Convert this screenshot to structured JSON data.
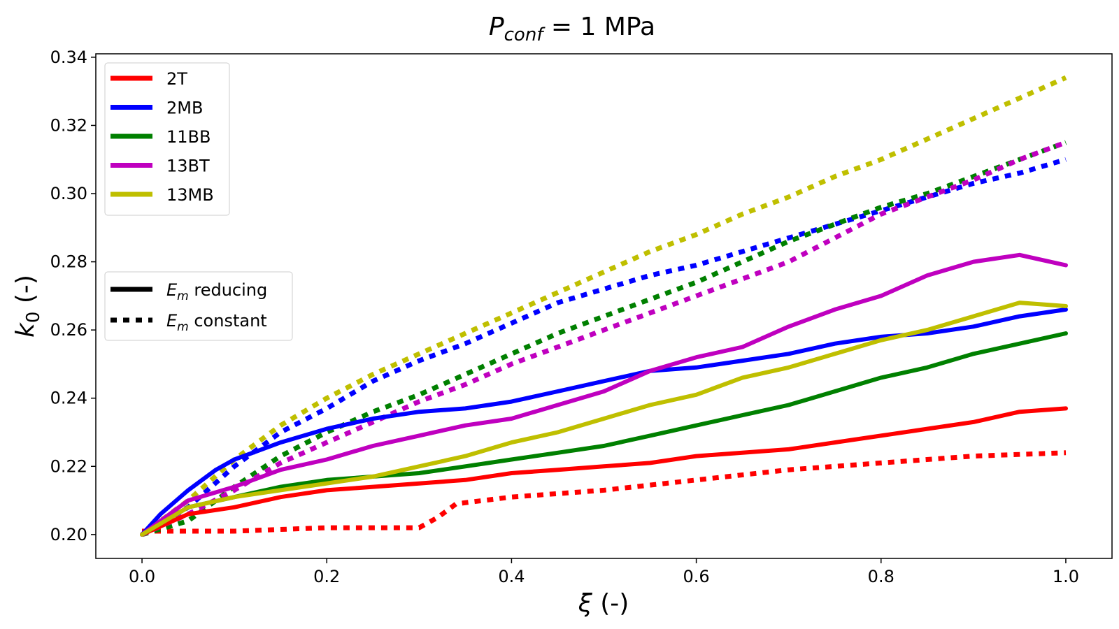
{
  "chart_data": {
    "type": "line",
    "title": "P_conf = 1 MPa",
    "title_parts": {
      "var": "P",
      "sub": "conf",
      "rest": " = 1 MPa"
    },
    "xlabel": "ξ (-)",
    "xlabel_parts": {
      "var": "ξ",
      "rest": " (-)"
    },
    "ylabel": "k_0 (-)",
    "ylabel_parts": {
      "var": "k",
      "sub": "0",
      "rest": " (-)"
    },
    "xlim": [
      -0.05,
      1.05
    ],
    "ylim": [
      0.193,
      0.341
    ],
    "xticks": [
      0.0,
      0.2,
      0.4,
      0.6,
      0.8,
      1.0
    ],
    "xtick_labels": [
      "0.0",
      "0.2",
      "0.4",
      "0.6",
      "0.8",
      "1.0"
    ],
    "yticks": [
      0.2,
      0.22,
      0.24,
      0.26,
      0.28,
      0.3,
      0.32,
      0.34
    ],
    "ytick_labels": [
      "0.20",
      "0.22",
      "0.24",
      "0.26",
      "0.28",
      "0.30",
      "0.32",
      "0.34"
    ],
    "legend_position": "top-left",
    "style_legend_position": "center-left",
    "style_legend": [
      {
        "label_var": "E",
        "label_sub": "m",
        "label_rest": " reducing",
        "linestyle": "solid"
      },
      {
        "label_var": "E",
        "label_sub": "m",
        "label_rest": " constant",
        "linestyle": "dotted"
      }
    ],
    "series": [
      {
        "name": "2T",
        "color": "#ff0000",
        "reducing": {
          "x": [
            0,
            0.05,
            0.1,
            0.15,
            0.2,
            0.25,
            0.3,
            0.35,
            0.4,
            0.45,
            0.5,
            0.55,
            0.6,
            0.65,
            0.7,
            0.75,
            0.8,
            0.85,
            0.9,
            0.95,
            1.0
          ],
          "y": [
            0.2,
            0.206,
            0.208,
            0.211,
            0.213,
            0.214,
            0.215,
            0.216,
            0.218,
            0.219,
            0.22,
            0.221,
            0.223,
            0.224,
            0.225,
            0.227,
            0.229,
            0.231,
            0.233,
            0.236,
            0.237
          ]
        },
        "constant": {
          "x": [
            0,
            0.1,
            0.2,
            0.3,
            0.32,
            0.34,
            0.4,
            0.5,
            0.6,
            0.7,
            0.8,
            0.9,
            1.0
          ],
          "y": [
            0.201,
            0.201,
            0.202,
            0.202,
            0.205,
            0.209,
            0.211,
            0.213,
            0.216,
            0.219,
            0.221,
            0.223,
            0.224
          ]
        }
      },
      {
        "name": "2MB",
        "color": "#0000ff",
        "reducing": {
          "x": [
            0,
            0.02,
            0.05,
            0.08,
            0.1,
            0.15,
            0.2,
            0.25,
            0.3,
            0.35,
            0.4,
            0.45,
            0.5,
            0.55,
            0.6,
            0.65,
            0.7,
            0.75,
            0.8,
            0.85,
            0.9,
            0.95,
            1.0
          ],
          "y": [
            0.2,
            0.206,
            0.213,
            0.219,
            0.222,
            0.227,
            0.231,
            0.234,
            0.236,
            0.237,
            0.239,
            0.242,
            0.245,
            0.248,
            0.249,
            0.251,
            0.253,
            0.256,
            0.258,
            0.259,
            0.261,
            0.264,
            0.266
          ]
        },
        "constant": {
          "x": [
            0,
            0.05,
            0.1,
            0.15,
            0.2,
            0.25,
            0.3,
            0.35,
            0.4,
            0.45,
            0.5,
            0.55,
            0.6,
            0.65,
            0.7,
            0.75,
            0.8,
            0.85,
            0.9,
            0.95,
            1.0
          ],
          "y": [
            0.2,
            0.208,
            0.22,
            0.23,
            0.237,
            0.245,
            0.251,
            0.256,
            0.262,
            0.268,
            0.272,
            0.276,
            0.279,
            0.283,
            0.287,
            0.291,
            0.295,
            0.299,
            0.303,
            0.306,
            0.31
          ]
        }
      },
      {
        "name": "11BB",
        "color": "#008000",
        "reducing": {
          "x": [
            0,
            0.05,
            0.1,
            0.15,
            0.2,
            0.25,
            0.3,
            0.35,
            0.4,
            0.45,
            0.5,
            0.55,
            0.6,
            0.65,
            0.7,
            0.75,
            0.8,
            0.85,
            0.9,
            0.95,
            1.0
          ],
          "y": [
            0.2,
            0.208,
            0.211,
            0.214,
            0.216,
            0.217,
            0.218,
            0.22,
            0.222,
            0.224,
            0.226,
            0.229,
            0.232,
            0.235,
            0.238,
            0.242,
            0.246,
            0.249,
            0.253,
            0.256,
            0.259
          ]
        },
        "constant": {
          "x": [
            0,
            0.05,
            0.1,
            0.15,
            0.2,
            0.25,
            0.3,
            0.35,
            0.4,
            0.45,
            0.5,
            0.55,
            0.6,
            0.65,
            0.7,
            0.75,
            0.8,
            0.85,
            0.9,
            0.95,
            1.0
          ],
          "y": [
            0.2,
            0.204,
            0.214,
            0.223,
            0.23,
            0.236,
            0.241,
            0.247,
            0.253,
            0.259,
            0.264,
            0.269,
            0.274,
            0.28,
            0.286,
            0.291,
            0.296,
            0.3,
            0.305,
            0.31,
            0.315
          ]
        }
      },
      {
        "name": "13BT",
        "color": "#bf00bf",
        "reducing": {
          "x": [
            0,
            0.05,
            0.1,
            0.15,
            0.2,
            0.25,
            0.3,
            0.35,
            0.4,
            0.45,
            0.5,
            0.55,
            0.6,
            0.65,
            0.7,
            0.75,
            0.8,
            0.85,
            0.9,
            0.95,
            1.0
          ],
          "y": [
            0.2,
            0.21,
            0.214,
            0.219,
            0.222,
            0.226,
            0.229,
            0.232,
            0.234,
            0.238,
            0.242,
            0.248,
            0.252,
            0.255,
            0.261,
            0.266,
            0.27,
            0.276,
            0.28,
            0.282,
            0.279
          ]
        },
        "constant": {
          "x": [
            0,
            0.05,
            0.1,
            0.15,
            0.2,
            0.25,
            0.3,
            0.35,
            0.4,
            0.45,
            0.5,
            0.55,
            0.6,
            0.65,
            0.7,
            0.75,
            0.8,
            0.85,
            0.9,
            0.95,
            1.0
          ],
          "y": [
            0.2,
            0.206,
            0.213,
            0.221,
            0.227,
            0.233,
            0.239,
            0.244,
            0.25,
            0.255,
            0.26,
            0.265,
            0.27,
            0.275,
            0.28,
            0.287,
            0.294,
            0.299,
            0.304,
            0.31,
            0.315
          ]
        }
      },
      {
        "name": "13MB",
        "color": "#bfbf00",
        "reducing": {
          "x": [
            0,
            0.05,
            0.1,
            0.15,
            0.2,
            0.25,
            0.3,
            0.35,
            0.4,
            0.45,
            0.5,
            0.55,
            0.6,
            0.65,
            0.7,
            0.75,
            0.8,
            0.85,
            0.9,
            0.95,
            1.0
          ],
          "y": [
            0.2,
            0.208,
            0.211,
            0.213,
            0.215,
            0.217,
            0.22,
            0.223,
            0.227,
            0.23,
            0.234,
            0.238,
            0.241,
            0.246,
            0.249,
            0.253,
            0.257,
            0.26,
            0.264,
            0.268,
            0.267
          ]
        },
        "constant": {
          "x": [
            0,
            0.05,
            0.1,
            0.15,
            0.2,
            0.25,
            0.3,
            0.35,
            0.4,
            0.45,
            0.5,
            0.55,
            0.6,
            0.65,
            0.7,
            0.75,
            0.8,
            0.85,
            0.9,
            0.95,
            1.0
          ],
          "y": [
            0.2,
            0.21,
            0.222,
            0.232,
            0.24,
            0.247,
            0.253,
            0.259,
            0.265,
            0.271,
            0.277,
            0.283,
            0.288,
            0.294,
            0.299,
            0.305,
            0.31,
            0.316,
            0.322,
            0.328,
            0.334
          ]
        }
      }
    ]
  }
}
